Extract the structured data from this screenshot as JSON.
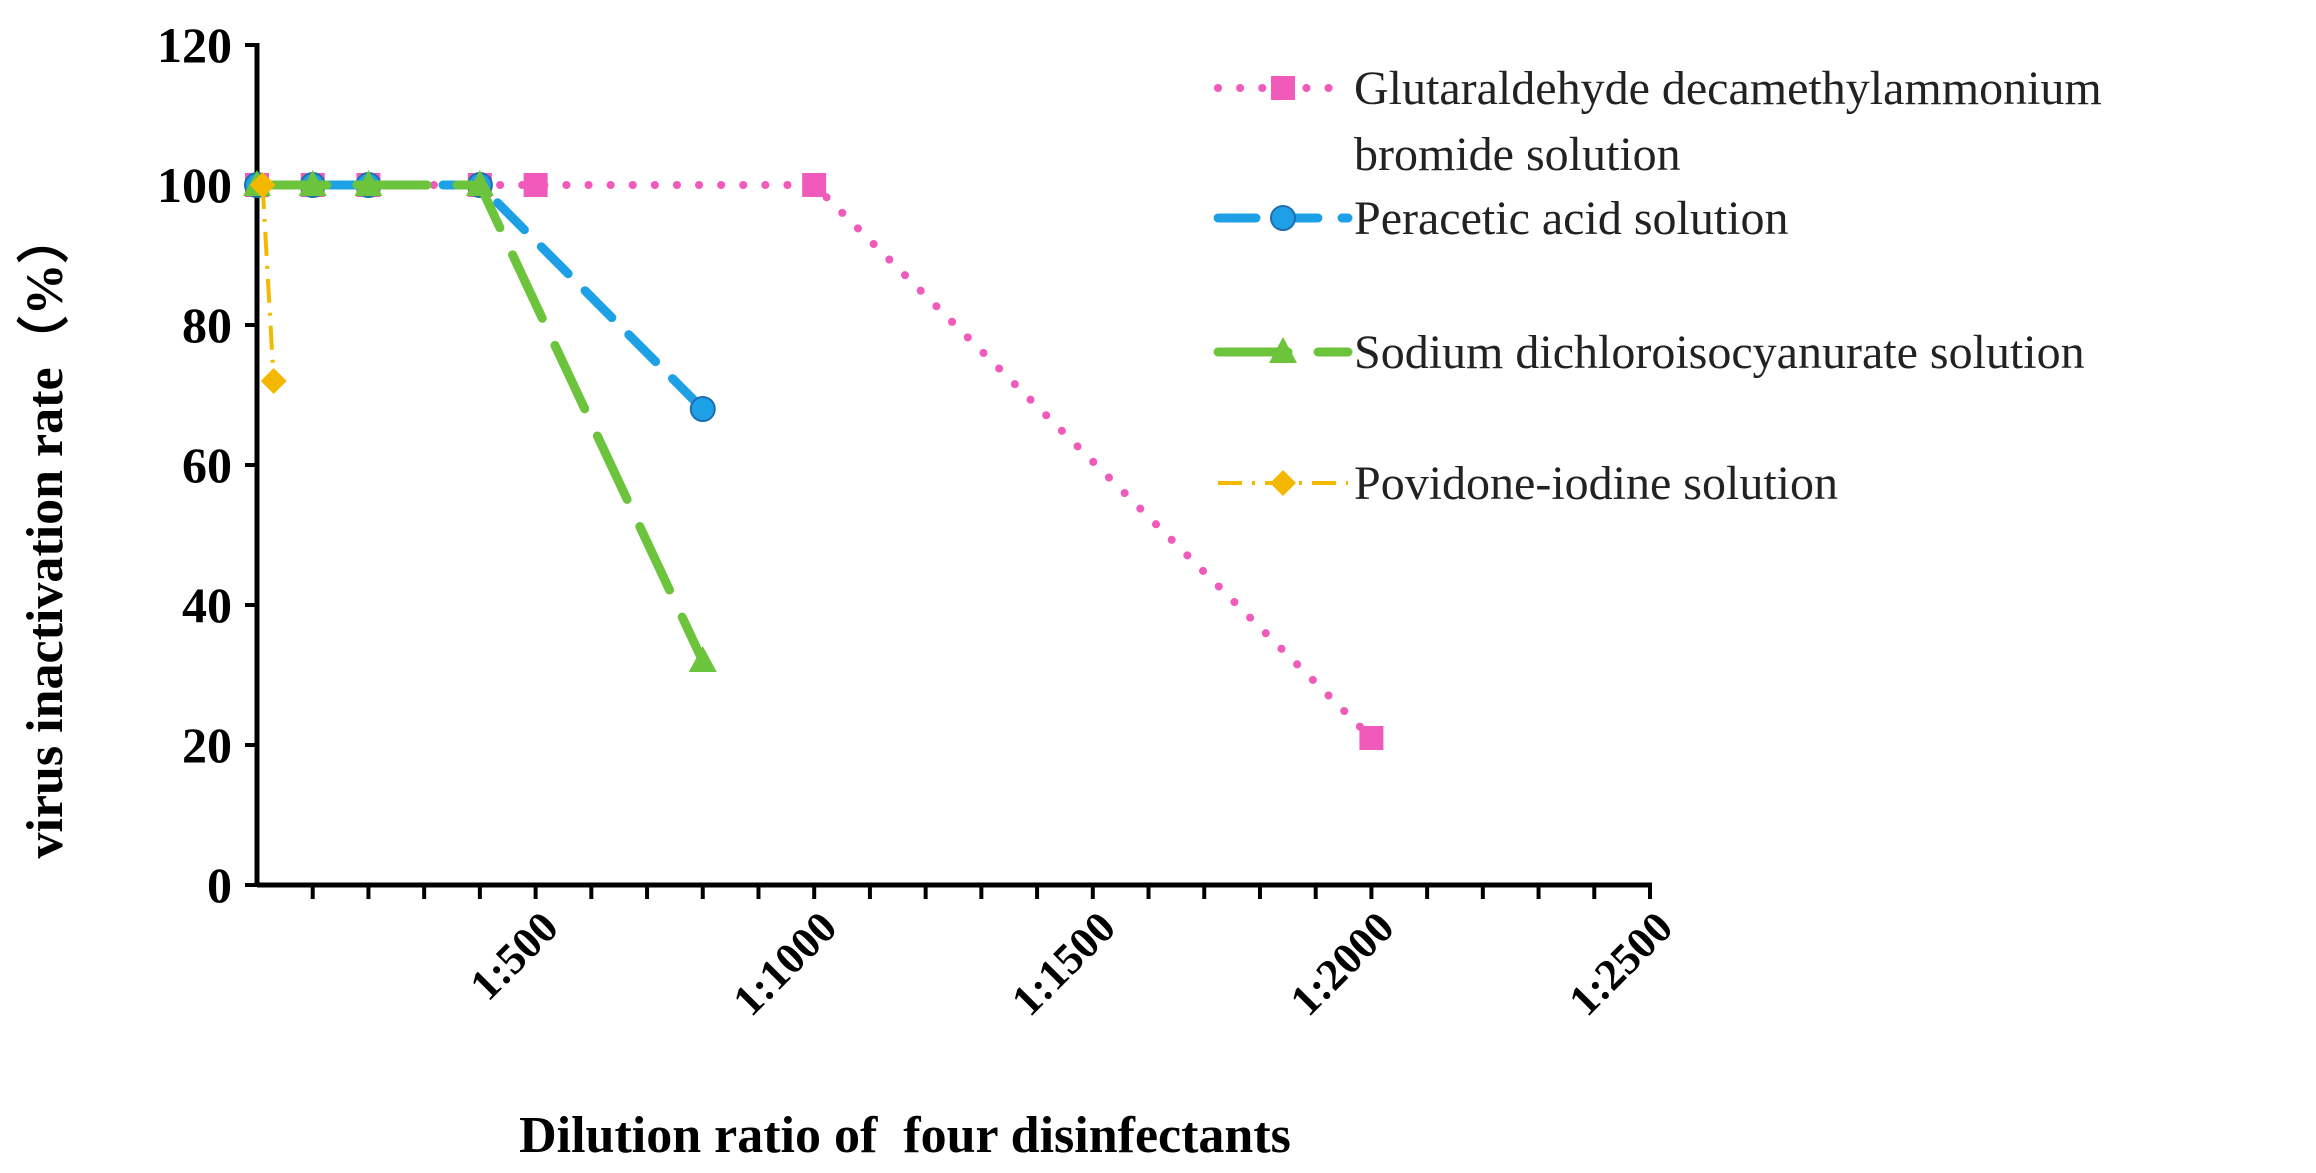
{
  "chart_data": {
    "type": "line",
    "title": "",
    "xlabel": "Dilution ratio of  four disinfectants",
    "ylabel": "virus inactivation rate（%）",
    "xlim": [
      0,
      2500
    ],
    "ylim": [
      0,
      120
    ],
    "x_ticks": [
      {
        "value": 500,
        "label": "1:500"
      },
      {
        "value": 1000,
        "label": "1:1000"
      },
      {
        "value": 1500,
        "label": "1:1500"
      },
      {
        "value": 2000,
        "label": "1:2000"
      },
      {
        "value": 2500,
        "label": "1:2500"
      }
    ],
    "y_ticks": [
      0,
      20,
      40,
      60,
      80,
      100,
      120
    ],
    "grid": false,
    "legend_position": "top-right",
    "series": [
      {
        "name": "Glutaraldehyde decamethylammonium bromide solution",
        "legend_lines": [
          "Glutaraldehyde decamethylammonium",
          "bromide solution"
        ],
        "color": "#f05aba",
        "line_style": "dotted",
        "marker": "square",
        "x": [
          0,
          100,
          200,
          400,
          500,
          1000,
          2000
        ],
        "y": [
          100,
          100,
          100,
          100,
          100,
          100,
          21
        ]
      },
      {
        "name": "Peracetic acid solution",
        "legend_lines": [
          "Peracetic acid solution"
        ],
        "color": "#1ea0e6",
        "line_style": "dashed",
        "marker": "circle",
        "x": [
          0,
          100,
          200,
          400,
          800
        ],
        "y": [
          100,
          100,
          100,
          100,
          68
        ]
      },
      {
        "name": "Sodium dichloroisocyanurate solution",
        "legend_lines": [
          "Sodium dichloroisocyanurate solution"
        ],
        "color": "#6cc43c",
        "line_style": "long-dash",
        "marker": "triangle",
        "x": [
          0,
          100,
          200,
          400,
          800
        ],
        "y": [
          100,
          100,
          100,
          100,
          32
        ]
      },
      {
        "name": "Povidone-iodine solution",
        "legend_lines": [
          "Povidone-iodine solution"
        ],
        "color": "#f5b800",
        "line_style": "dash-dot",
        "marker": "diamond",
        "x": [
          10,
          30
        ],
        "y": [
          100,
          72
        ]
      }
    ]
  }
}
